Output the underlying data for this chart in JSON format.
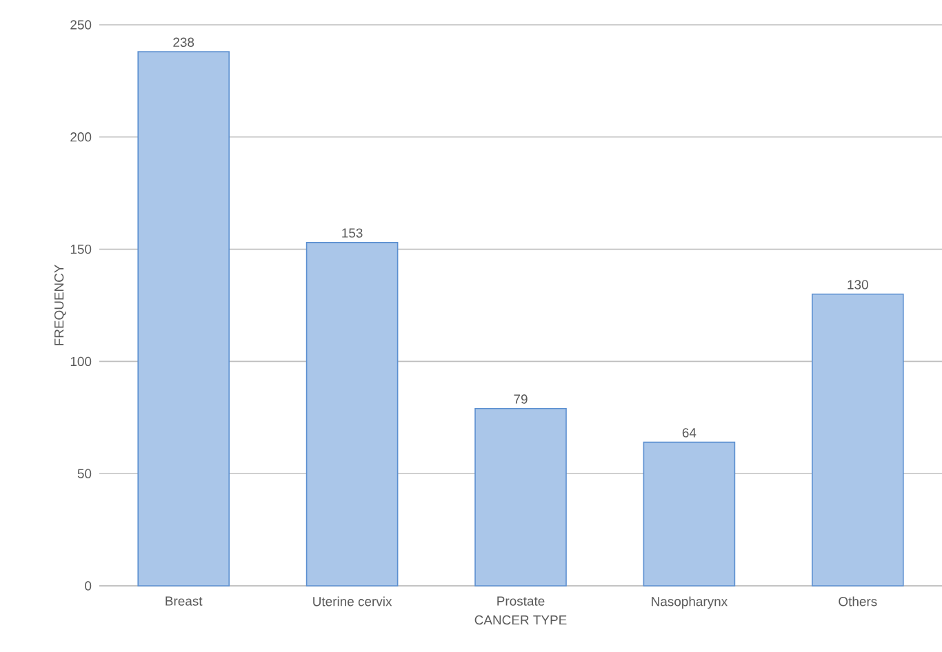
{
  "chart_data": {
    "type": "bar",
    "xlabel": "CANCER TYPE",
    "ylabel": "FREQUENCY",
    "categories": [
      "Breast",
      "Uterine cervix",
      "Prostate",
      "Nasopharynx",
      "Others"
    ],
    "values": [
      238,
      153,
      79,
      64,
      130
    ],
    "color": "#aac6e9",
    "ylim": [
      0,
      250
    ],
    "yticks": [
      0,
      50,
      100,
      150,
      200,
      250
    ],
    "grid": "y",
    "data_labels": true
  }
}
